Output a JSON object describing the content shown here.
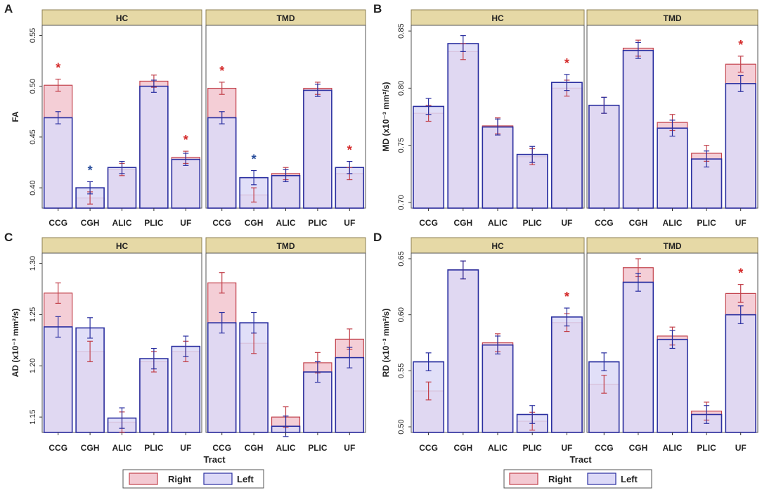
{
  "figure": {
    "x_label": "Tract"
  },
  "legend": {
    "right_label": "Right",
    "left_label": "Left"
  },
  "colors": {
    "strip": "#e6d9a6",
    "right_fill": "#f3c9d2",
    "right_stroke": "#c2424c",
    "left_fill": "#dcd9f7",
    "left_stroke": "#2a2fa0",
    "star_red": "#d42a2a",
    "star_blue": "#2a4f9c",
    "axis": "#333333",
    "text": "#222222"
  },
  "chart_data": [
    {
      "type": "bar",
      "panel_letter": "A",
      "ylabel": "FA",
      "ylim": [
        0.38,
        0.56
      ],
      "yticks": [
        0.4,
        0.45,
        0.5,
        0.55
      ],
      "ytick_labels": [
        "0.40",
        "0.45",
        "0.50",
        "0.55"
      ],
      "categories": [
        "CCG",
        "CGH",
        "ALIC",
        "PLIC",
        "UF"
      ],
      "facets": [
        {
          "label": "HC",
          "right": [
            0.501,
            0.39,
            0.418,
            0.505,
            0.43
          ],
          "right_err": [
            0.006,
            0.006,
            0.006,
            0.006,
            0.006
          ],
          "left": [
            0.469,
            0.4,
            0.42,
            0.5,
            0.428
          ],
          "left_err": [
            0.006,
            0.006,
            0.006,
            0.006,
            0.006
          ],
          "stars": [
            {
              "index": 0,
              "color": "red"
            },
            {
              "index": 1,
              "color": "blue"
            },
            {
              "index": 4,
              "color": "red"
            }
          ]
        },
        {
          "label": "TMD",
          "right": [
            0.498,
            0.393,
            0.414,
            0.498,
            0.414
          ],
          "right_err": [
            0.006,
            0.007,
            0.006,
            0.006,
            0.006
          ],
          "left": [
            0.469,
            0.41,
            0.412,
            0.496,
            0.42
          ],
          "left_err": [
            0.006,
            0.007,
            0.006,
            0.006,
            0.006
          ],
          "stars": [
            {
              "index": 0,
              "color": "red"
            },
            {
              "index": 1,
              "color": "blue"
            },
            {
              "index": 4,
              "color": "red"
            }
          ]
        }
      ]
    },
    {
      "type": "bar",
      "panel_letter": "B",
      "ylabel": "MD (x10⁻³ mm²/s)",
      "ylim": [
        0.695,
        0.855
      ],
      "yticks": [
        0.7,
        0.75,
        0.8,
        0.85
      ],
      "ytick_labels": [
        "0.70",
        "0.75",
        "0.80",
        "0.85"
      ],
      "categories": [
        "CCG",
        "CGH",
        "ALIC",
        "PLIC",
        "UF"
      ],
      "facets": [
        {
          "label": "HC",
          "right": [
            0.778,
            0.832,
            0.767,
            0.74,
            0.8
          ],
          "right_err": [
            0.007,
            0.007,
            0.007,
            0.007,
            0.007
          ],
          "left": [
            0.784,
            0.839,
            0.766,
            0.742,
            0.805
          ],
          "left_err": [
            0.007,
            0.007,
            0.007,
            0.007,
            0.007
          ],
          "stars": [
            {
              "index": 4,
              "color": "red"
            }
          ]
        },
        {
          "label": "TMD",
          "right": [
            0.785,
            0.835,
            0.77,
            0.743,
            0.821
          ],
          "right_err": [
            0.007,
            0.007,
            0.007,
            0.007,
            0.007
          ],
          "left": [
            0.785,
            0.833,
            0.765,
            0.738,
            0.804
          ],
          "left_err": [
            0.007,
            0.007,
            0.007,
            0.007,
            0.007
          ],
          "stars": [
            {
              "index": 4,
              "color": "red"
            }
          ]
        }
      ]
    },
    {
      "type": "bar",
      "panel_letter": "C",
      "ylabel": "AD (x10⁻³ mm²/s)",
      "ylim": [
        1.135,
        1.31
      ],
      "yticks": [
        1.15,
        1.2,
        1.25,
        1.3
      ],
      "ytick_labels": [
        "1.15",
        "1.20",
        "1.25",
        "1.30"
      ],
      "categories": [
        "CCG",
        "CGH",
        "ALIC",
        "PLIC",
        "UF"
      ],
      "facets": [
        {
          "label": "HC",
          "right": [
            1.271,
            1.214,
            1.145,
            1.204,
            1.214
          ],
          "right_err": [
            0.01,
            0.01,
            0.01,
            0.01,
            0.01
          ],
          "left": [
            1.238,
            1.237,
            1.149,
            1.207,
            1.219
          ],
          "left_err": [
            0.01,
            0.01,
            0.01,
            0.01,
            0.01
          ],
          "stars": []
        },
        {
          "label": "TMD",
          "right": [
            1.281,
            1.222,
            1.15,
            1.203,
            1.226
          ],
          "right_err": [
            0.01,
            0.01,
            0.01,
            0.01,
            0.01
          ],
          "left": [
            1.242,
            1.242,
            1.141,
            1.194,
            1.208
          ],
          "left_err": [
            0.01,
            0.01,
            0.01,
            0.01,
            0.01
          ],
          "stars": []
        }
      ]
    },
    {
      "type": "bar",
      "panel_letter": "D",
      "ylabel": "RD (x10⁻³ mm²/s)",
      "ylim": [
        0.495,
        0.655
      ],
      "yticks": [
        0.5,
        0.55,
        0.6,
        0.65
      ],
      "ytick_labels": [
        "0.50",
        "0.55",
        "0.60",
        "0.65"
      ],
      "categories": [
        "CCG",
        "CGH",
        "ALIC",
        "PLIC",
        "UF"
      ],
      "facets": [
        {
          "label": "HC",
          "right": [
            0.532,
            0.64,
            0.575,
            0.505,
            0.593
          ],
          "right_err": [
            0.008,
            0.008,
            0.008,
            0.008,
            0.008
          ],
          "left": [
            0.558,
            0.64,
            0.573,
            0.511,
            0.598
          ],
          "left_err": [
            0.008,
            0.008,
            0.008,
            0.008,
            0.008
          ],
          "stars": [
            {
              "index": 4,
              "color": "red"
            }
          ]
        },
        {
          "label": "TMD",
          "right": [
            0.538,
            0.642,
            0.581,
            0.514,
            0.619
          ],
          "right_err": [
            0.008,
            0.008,
            0.008,
            0.008,
            0.008
          ],
          "left": [
            0.558,
            0.629,
            0.578,
            0.511,
            0.6
          ],
          "left_err": [
            0.008,
            0.008,
            0.008,
            0.008,
            0.008
          ],
          "stars": [
            {
              "index": 4,
              "color": "red"
            }
          ]
        }
      ]
    }
  ]
}
